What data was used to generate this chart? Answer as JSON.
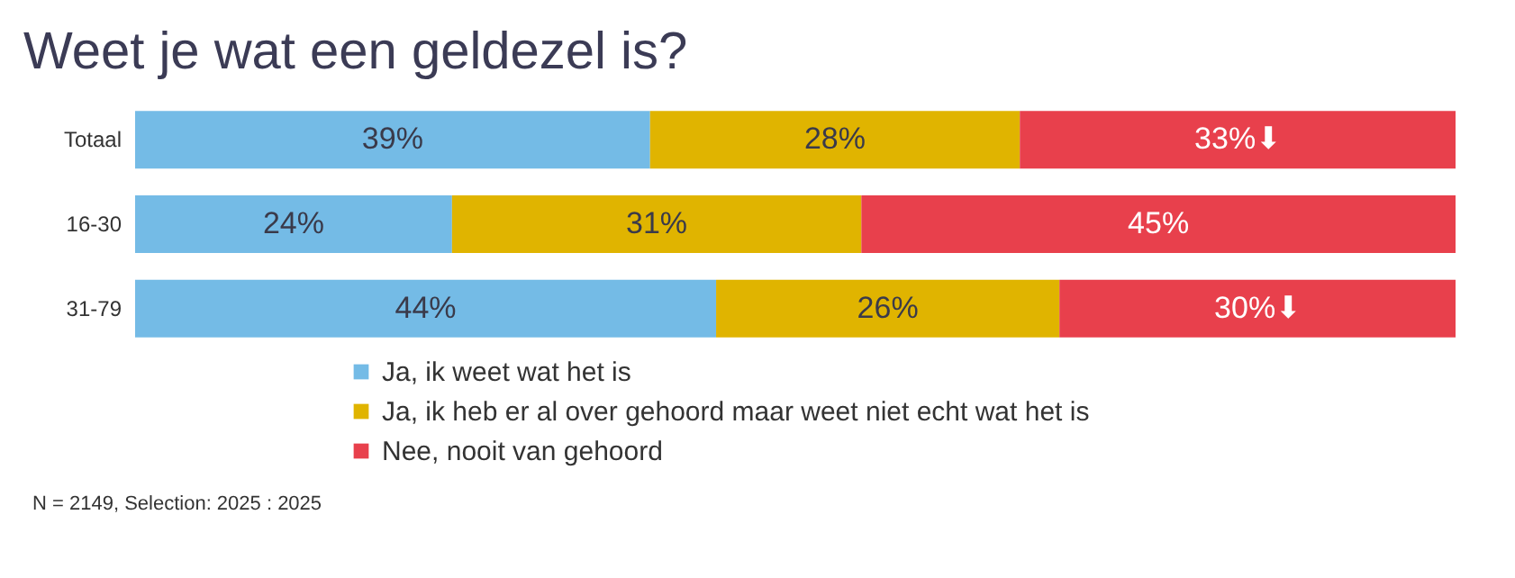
{
  "chart_data": {
    "type": "bar",
    "orientation": "horizontal",
    "stacked": true,
    "title": "Weet je wat een geldezel is?",
    "categories": [
      "Totaal",
      "16-30",
      "31-79"
    ],
    "series": [
      {
        "name": "Ja, ik weet wat het is",
        "color": "#74bbe6",
        "values": [
          39,
          24,
          44
        ],
        "value_labels": [
          "39%",
          "24%",
          "44%"
        ]
      },
      {
        "name": "Ja, ik heb er al over gehoord maar weet niet echt wat het is",
        "color": "#e0b400",
        "values": [
          28,
          31,
          26
        ],
        "value_labels": [
          "28%",
          "31%",
          "26%"
        ]
      },
      {
        "name": "Nee, nooit van gehoord",
        "color": "#e8404c",
        "values": [
          33,
          45,
          30
        ],
        "value_labels": [
          "33%⬇",
          "45%",
          "30%⬇"
        ]
      }
    ],
    "legend": "bottom",
    "annotations": [
      "N = 2149, Selection: 2025 : 2025"
    ]
  }
}
